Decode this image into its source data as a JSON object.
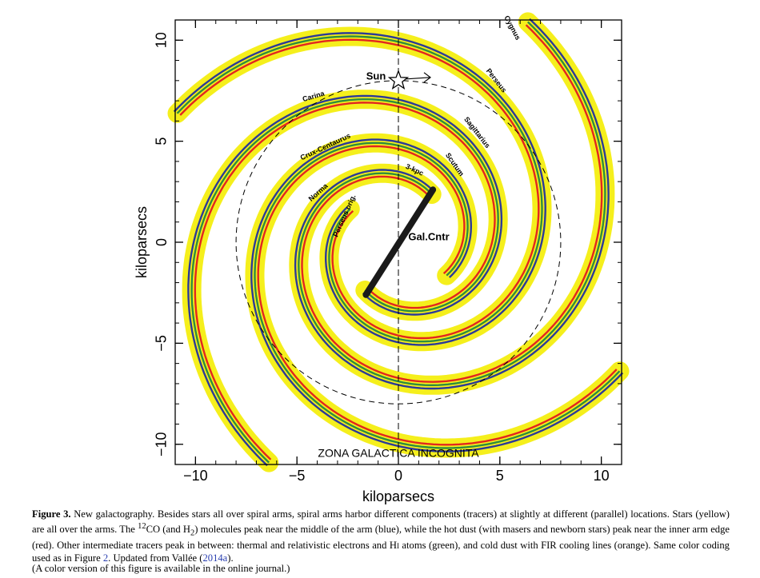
{
  "figure": {
    "xlabel": "kiloparsecs",
    "ylabel": "kiloparsecs",
    "xlim": [
      -11,
      11
    ],
    "ylim": [
      -11,
      11
    ],
    "xticks": [
      {
        "value": -10,
        "label": "−10"
      },
      {
        "value": -5,
        "label": "−5"
      },
      0,
      5,
      10
    ],
    "yticks": [
      {
        "value": -10,
        "label": "−10"
      },
      {
        "value": -5,
        "label": "−5"
      },
      0,
      5,
      10
    ],
    "xminorticks": [
      -10,
      -9,
      -8,
      -7,
      -6,
      -5,
      -4,
      -3,
      -2,
      -1,
      0,
      1,
      2,
      3,
      4,
      5,
      6,
      7,
      8,
      9,
      10
    ],
    "yminorticks": [
      -10,
      -9,
      -8,
      -7,
      -6,
      -5,
      -4,
      -3,
      -2,
      -1,
      0,
      1,
      2,
      3,
      4,
      5,
      6,
      7,
      8,
      9,
      10
    ],
    "arm_labels": [
      "Cygnus",
      "Perseus",
      "Sagittarius",
      "Scutum",
      "3-kpc",
      "Carina",
      "Crux-Centaurus",
      "Norma",
      "Perseus orig."
    ],
    "annotations": [
      "Sun",
      "Gal.Cntr",
      "ZONA GALACTICA INCOGNITA"
    ]
  },
  "caption": {
    "label": "Figure 3.",
    "text1": "New galactography. Besides stars all over spiral arms, spiral arms harbor different components (tracers) at slightly at different (parallel) locations. Stars (yellow) are all over the arms. The ",
    "sup": "12",
    "text2": "CO (and H",
    "sub": "2",
    "text3": ") molecules peak near the middle of the arm (blue), while the hot dust (with masers and newborn stars) peak near the inner arm edge (red). Other intermediate tracers peak in between: thermal and relativistic electrons and H",
    "smallcaps": "I",
    "text4": " atoms (green), and cold dust with FIR cooling lines (orange). Same color coding used as in Figure ",
    "link1": "2",
    "text5": ". Updated from Vallée (",
    "link2": "2014a",
    "text6": ").",
    "note": "(A color version of this figure is available in the online journal.)"
  }
}
